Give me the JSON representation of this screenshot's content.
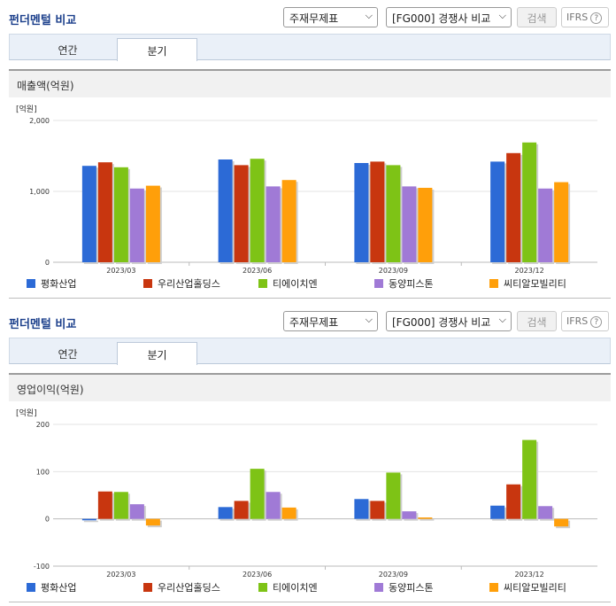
{
  "panels": [
    {
      "title": "펀더멘털 비교",
      "select1": "주재무제표",
      "select2": "[FG000] 경쟁사 비교",
      "search": "검색",
      "ifrs": "IFRS",
      "ifrs_help": "?",
      "tabs": [
        "연간",
        "분기"
      ],
      "active_tab": "분기",
      "subtitle": "매출액(억원)"
    },
    {
      "title": "펀더멘털 비교",
      "select1": "주재무제표",
      "select2": "[FG000] 경쟁사 비교",
      "search": "검색",
      "ifrs": "IFRS",
      "ifrs_help": "?",
      "tabs": [
        "연간",
        "분기"
      ],
      "active_tab": "분기",
      "subtitle": "영업이익(억원)"
    }
  ],
  "chart_data": [
    {
      "type": "bar",
      "unit_label": "[억원]",
      "categories": [
        "2023/03",
        "2023/06",
        "2023/09",
        "2023/12"
      ],
      "ylim": [
        0,
        2000
      ],
      "yticks": [
        0,
        1000,
        2000
      ],
      "ytick_labels": [
        "0",
        "1,000",
        "2,000"
      ],
      "legend_position": "bottom",
      "series": [
        {
          "name": "평화산업",
          "color": "#2c6ad6",
          "values": [
            1360,
            1450,
            1400,
            1420
          ]
        },
        {
          "name": "우리산업홀딩스",
          "color": "#c8360f",
          "values": [
            1410,
            1370,
            1420,
            1540
          ]
        },
        {
          "name": "티에이치엔",
          "color": "#7ec316",
          "values": [
            1340,
            1460,
            1370,
            1690
          ]
        },
        {
          "name": "동양피스톤",
          "color": "#a07ad6",
          "values": [
            1040,
            1070,
            1070,
            1040
          ]
        },
        {
          "name": "씨티알모빌리티",
          "color": "#ff9f0a",
          "values": [
            1080,
            1160,
            1050,
            1130
          ]
        }
      ]
    },
    {
      "type": "bar",
      "unit_label": "[억원]",
      "categories": [
        "2023/03",
        "2023/06",
        "2023/09",
        "2023/12"
      ],
      "ylim": [
        -100,
        200
      ],
      "yticks": [
        -100,
        0,
        100,
        200
      ],
      "ytick_labels": [
        "-100",
        "0",
        "100",
        "200"
      ],
      "legend_position": "bottom",
      "series": [
        {
          "name": "평화산업",
          "color": "#2c6ad6",
          "values": [
            -3,
            25,
            42,
            28
          ]
        },
        {
          "name": "우리산업홀딩스",
          "color": "#c8360f",
          "values": [
            58,
            38,
            38,
            73
          ]
        },
        {
          "name": "티에이치엔",
          "color": "#7ec316",
          "values": [
            57,
            106,
            98,
            167
          ]
        },
        {
          "name": "동양피스톤",
          "color": "#a07ad6",
          "values": [
            31,
            57,
            16,
            27
          ]
        },
        {
          "name": "씨티알모빌리티",
          "color": "#ff9f0a",
          "values": [
            -14,
            24,
            3,
            -16
          ]
        }
      ]
    }
  ]
}
